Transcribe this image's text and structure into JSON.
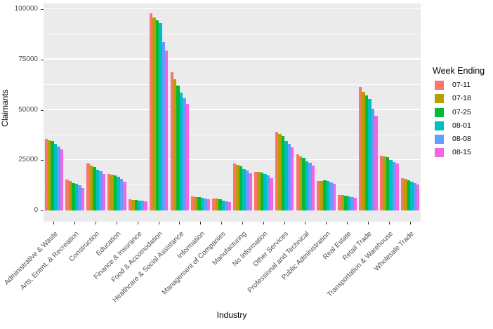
{
  "figure": {
    "background": "#FFFFFF",
    "panel_color": "#EBEBEB",
    "grid_color": "#FFFFFF",
    "axis_text_color": "#4D4D4D",
    "title_text_color": "#000000",
    "tick_mark_color": "#333333"
  },
  "chart_data": {
    "type": "bar",
    "title": "",
    "xlabel": "Industry",
    "ylabel": "Claimants",
    "legend_title": "Week Ending",
    "legend_position": "right",
    "grid": true,
    "ylim": [
      0,
      100000
    ],
    "y_ticks": [
      0,
      25000,
      50000,
      75000,
      100000
    ],
    "y_tick_labels": [
      "0",
      "25000",
      "50000",
      "75000",
      "100000"
    ],
    "y_minor_ticks": [
      12500,
      37500,
      62500,
      87500
    ],
    "categories": [
      "Administrative & Waste",
      "Arts, Entmt. & Recreation",
      "Construction",
      "Education",
      "Finance & Insurance",
      "Food & Accomodation",
      "Healthcare & Social Assistance",
      "Information",
      "Management of Companies",
      "Manufacturing",
      "No Information",
      "Other Services",
      "Professional and Technical",
      "Public Administration",
      "Real Estate",
      "Retail Trade",
      "Transportation & Warehouse",
      "Wholesale Trade"
    ],
    "series": [
      {
        "name": "07-11",
        "color": "#F8766D",
        "values": [
          35500,
          15400,
          23500,
          18000,
          5500,
          97800,
          68500,
          7000,
          6000,
          23500,
          19200,
          39000,
          28000,
          14500,
          7800,
          61500,
          27300,
          16200
        ]
      },
      {
        "name": "07-18",
        "color": "#B79F00",
        "values": [
          35000,
          14500,
          22400,
          17800,
          5300,
          95800,
          65000,
          6700,
          5800,
          22500,
          19100,
          38000,
          27000,
          14800,
          7500,
          59000,
          27000,
          15700
        ]
      },
      {
        "name": "07-25",
        "color": "#00BA38",
        "values": [
          34500,
          13700,
          21500,
          17400,
          5200,
          94300,
          62000,
          6600,
          5500,
          21800,
          18800,
          37000,
          26000,
          15000,
          7300,
          57000,
          26500,
          15000
        ]
      },
      {
        "name": "08-01",
        "color": "#00BFC4",
        "values": [
          33200,
          13100,
          20100,
          16800,
          5000,
          93000,
          58500,
          6300,
          4900,
          20500,
          18000,
          34500,
          24400,
          14700,
          7000,
          55500,
          25000,
          14200
        ]
      },
      {
        "name": "08-08",
        "color": "#619CFF",
        "values": [
          31800,
          12400,
          19400,
          15700,
          4900,
          83500,
          55800,
          5800,
          4400,
          19700,
          17400,
          33200,
          23800,
          14000,
          6600,
          50500,
          24200,
          13500
        ]
      },
      {
        "name": "08-15",
        "color": "#F564E3",
        "values": [
          30300,
          11200,
          18200,
          14300,
          4700,
          79500,
          52800,
          5500,
          4100,
          18600,
          16000,
          31500,
          22300,
          13200,
          6200,
          47200,
          23400,
          13000
        ]
      }
    ]
  }
}
